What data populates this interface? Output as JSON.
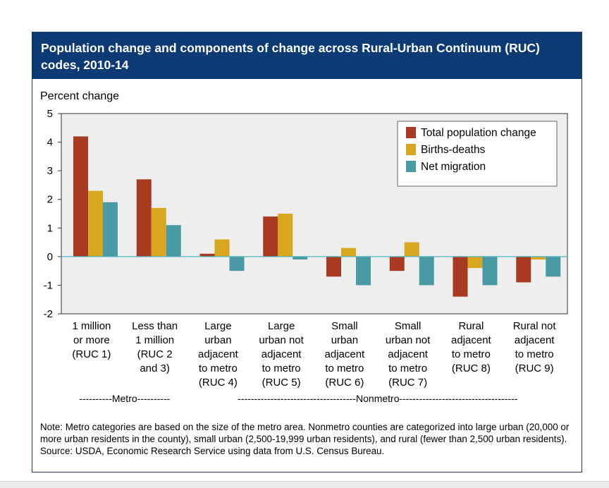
{
  "header": {
    "title": "Population change and components of change across Rural-Urban Continuum (RUC) codes, 2010-14"
  },
  "chart_data": {
    "type": "bar",
    "ylabel": "Percent change",
    "ylim": [
      -2,
      5
    ],
    "yticks": [
      "5",
      "4",
      "3",
      "2",
      "1",
      "0",
      "-1",
      "-2"
    ],
    "categories": [
      [
        "1 million",
        "or more",
        "(RUC 1)"
      ],
      [
        "Less than",
        "1 million",
        "(RUC 2",
        "and 3)"
      ],
      [
        "Large",
        "urban",
        "adjacent",
        "to metro",
        "(RUC 4)"
      ],
      [
        "Large",
        "urban not",
        "adjacent",
        "to metro",
        "(RUC 5)"
      ],
      [
        "Small",
        "urban",
        "adjacent",
        "to metro",
        "(RUC 6)"
      ],
      [
        "Small",
        "urban not",
        "adjacent",
        "to metro",
        "(RUC 7)"
      ],
      [
        "Rural",
        "adjacent",
        "to metro",
        "(RUC 8)"
      ],
      [
        "Rural not",
        "adjacent",
        "to metro",
        "(RUC 9)"
      ]
    ],
    "series": [
      {
        "name": "Total population change",
        "color": "#a83a22",
        "values": [
          4.2,
          2.7,
          0.1,
          1.4,
          -0.7,
          -0.5,
          -1.4,
          -0.9
        ]
      },
      {
        "name": "Births-deaths",
        "color": "#d8a720",
        "values": [
          2.3,
          1.7,
          0.6,
          1.5,
          0.3,
          0.5,
          -0.4,
          -0.1
        ]
      },
      {
        "name": "Net migration",
        "color": "#4a9aa5",
        "values": [
          1.9,
          1.1,
          -0.5,
          -0.1,
          -1.0,
          -1.0,
          -1.0,
          -0.7
        ]
      }
    ],
    "groups": [
      {
        "label": "----------Metro----------",
        "span": [
          0,
          1
        ]
      },
      {
        "label": "------------------------------------Nonmetro------------------------------------",
        "span": [
          2,
          7
        ]
      }
    ],
    "grid": false,
    "legend_position": "top-right",
    "plot_background": "#eeeeee",
    "zero_line_color": "#4fb3c0"
  },
  "notes": {
    "note": "Note: Metro categories are based on the size of the metro area. Nonmetro counties are categorized into large urban (20,000 or more urban residents in the county), small urban (2,500-19,999 urban residents), and rural (fewer than 2,500 urban residents).",
    "source": "Source: USDA, Economic Research Service using data from U.S. Census Bureau."
  }
}
